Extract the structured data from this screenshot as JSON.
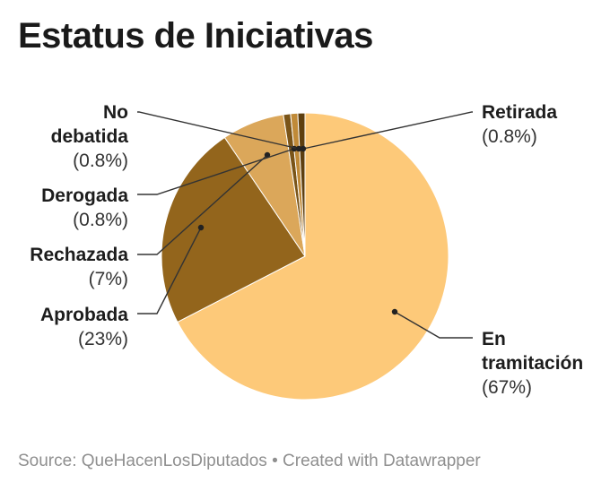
{
  "title": "Estatus de Iniciativas",
  "footer": {
    "source": "Source: QueHacenLosDiputados",
    "separator": "•",
    "credit": "Created with Datawrapper"
  },
  "colors": {
    "line": "#333333",
    "slice_border": "#ffffff"
  },
  "chart_data": {
    "type": "pie",
    "title": "Estatus de Iniciativas",
    "unit": "%",
    "slices": [
      {
        "name_lines": [
          "En",
          "tramitación"
        ],
        "pct_label": "(67%)",
        "value": 67.0,
        "color": "#fdc979"
      },
      {
        "name_lines": [
          "Aprobada"
        ],
        "pct_label": "(23%)",
        "value": 23.0,
        "color": "#93651c"
      },
      {
        "name_lines": [
          "Rechazada"
        ],
        "pct_label": "(7%)",
        "value": 7.0,
        "color": "#dba75a"
      },
      {
        "name_lines": [
          "Derogada"
        ],
        "pct_label": "(0.8%)",
        "value": 0.8,
        "color": "#7a5418"
      },
      {
        "name_lines": [
          "No",
          "debatida"
        ],
        "pct_label": "(0.8%)",
        "value": 0.8,
        "color": "#c08a38"
      },
      {
        "name_lines": [
          "Retirada"
        ],
        "pct_label": "(0.8%)",
        "value": 0.8,
        "color": "#5e3f0f"
      }
    ]
  }
}
